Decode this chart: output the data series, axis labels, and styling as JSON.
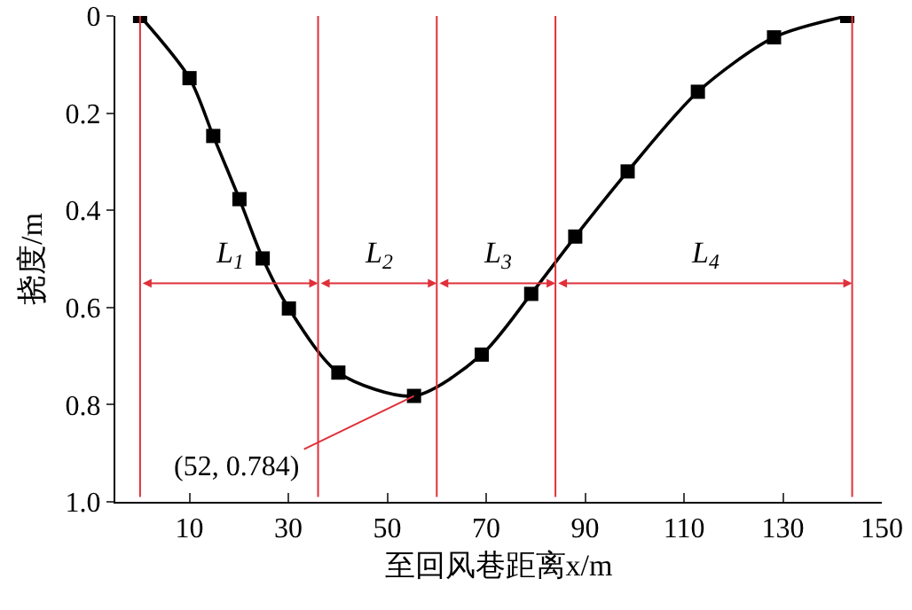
{
  "chart_data": {
    "type": "line",
    "xlabel": "至回风巷距离x/m",
    "ylabel": "挠度/m",
    "x": [
      0,
      10,
      14.8,
      20.1,
      24.8,
      30.1,
      40.1,
      55.4,
      69.1,
      79.1,
      88,
      98.6,
      112.8,
      128.2,
      143
    ],
    "series": [
      {
        "color": "#000000",
        "values": [
          0,
          0.128,
          0.247,
          0.377,
          0.499,
          0.602,
          0.734,
          0.782,
          0.697,
          0.572,
          0.454,
          0.32,
          0.156,
          0.044,
          0
        ]
      }
    ],
    "xlim": [
      -5,
      150
    ],
    "xticks": [
      10,
      30,
      50,
      70,
      90,
      110,
      130,
      150
    ],
    "ylim": [
      1.0,
      0
    ],
    "yticks": [
      {
        "value": 0,
        "label": "0"
      },
      {
        "value": 0.2,
        "label": "0.2"
      },
      {
        "value": 0.4,
        "label": "0.4"
      },
      {
        "value": 0.6,
        "label": "0.6"
      },
      {
        "value": 0.8,
        "label": "0.8"
      },
      {
        "value": 1.0,
        "label": "1.0"
      }
    ],
    "marker": "square",
    "ref_lines": [
      {
        "axis": "x",
        "value": 0,
        "color": "#e0303a"
      },
      {
        "axis": "x",
        "value": 36,
        "color": "#e0303a"
      },
      {
        "axis": "x",
        "value": 60,
        "color": "#e0303a"
      },
      {
        "axis": "x",
        "value": 84,
        "color": "#e0303a"
      },
      {
        "axis": "x",
        "value": 144,
        "color": "#e0303a"
      }
    ],
    "annotations": [
      "L$_{1}$",
      "L$_{2}$",
      "L$_{3}$",
      "L$_{4}$",
      {
        "text": "(52, 0.784)",
        "x": 55.4,
        "y": 0.782
      }
    ]
  }
}
